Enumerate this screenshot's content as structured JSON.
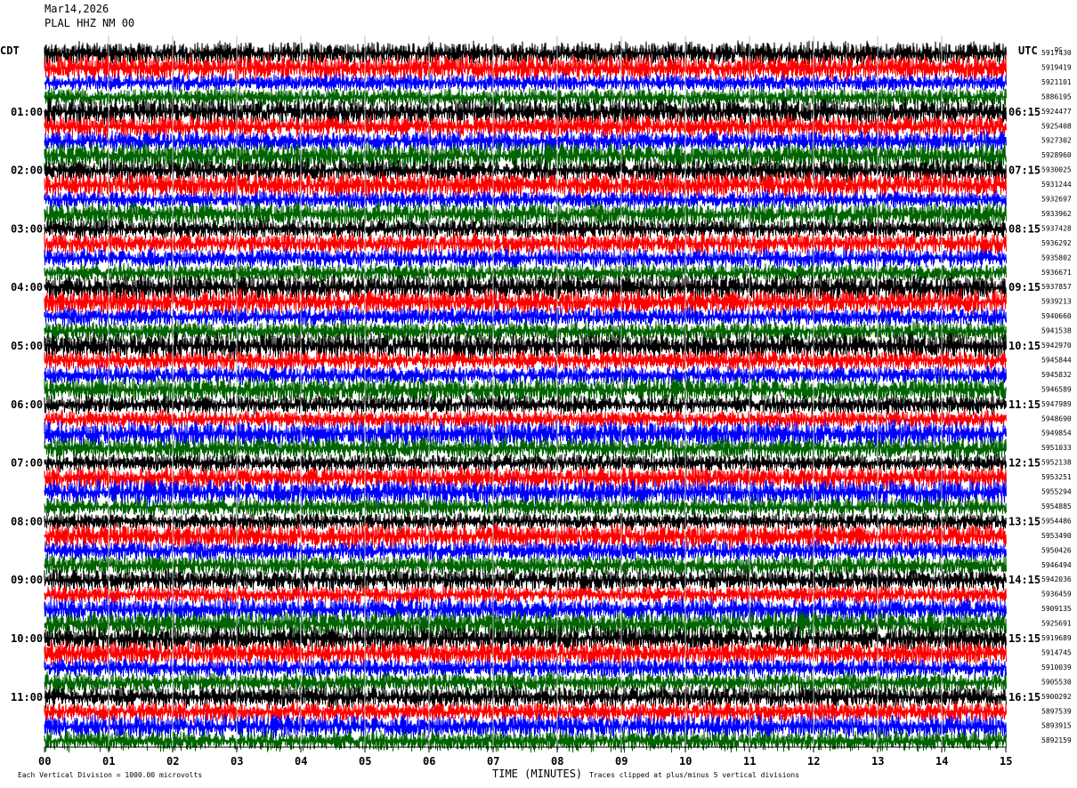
{
  "header": {
    "date": "Mar14,2026",
    "station": "PLAL HHZ NM 00"
  },
  "footer": {
    "scale_note": "Each Vertical Division = 1000.00 microvolts",
    "clip_note": "Traces clipped at plus/minus 5 vertical divisions"
  },
  "chart_data": {
    "type": "line",
    "title": "",
    "xlabel": "TIME (MINUTES)",
    "ylabel": "",
    "x_ticks": [
      "00",
      "01",
      "02",
      "03",
      "04",
      "05",
      "06",
      "07",
      "08",
      "09",
      "10",
      "11",
      "12",
      "13",
      "14",
      "15"
    ],
    "xlim": [
      0,
      15
    ],
    "left_axis_label": "CDT",
    "right_axis_label": "UTC",
    "dc_label": "DC",
    "hour_labels_local": [
      "01:00",
      "02:00",
      "03:00",
      "04:00",
      "05:00",
      "06:00",
      "07:00",
      "08:00",
      "09:00",
      "10:00",
      "11:00"
    ],
    "hour_labels_utc": [
      "06:15",
      "07:15",
      "08:15",
      "09:15",
      "10:15",
      "11:15",
      "12:15",
      "13:15",
      "14:15",
      "15:15",
      "16:15"
    ],
    "trace_colors": [
      "#000000",
      "#ff0000",
      "#0000ff",
      "#006400"
    ],
    "dc_offsets": [
      5917430,
      5919419,
      5921101,
      5886195,
      5924477,
      5925408,
      5927302,
      5928960,
      5930025,
      5931244,
      5932697,
      5933962,
      5937428,
      5936292,
      5935802,
      5936671,
      5937857,
      5939213,
      5940660,
      5941538,
      5942970,
      5945844,
      5945832,
      5946589,
      5947989,
      5948690,
      5949854,
      5951033,
      5952138,
      5953251,
      5955294,
      5954885,
      5954486,
      5953490,
      5950426,
      5946494,
      5942036,
      5936459,
      5909135,
      5925691,
      5919689,
      5914745,
      5910039,
      5905530,
      5900292,
      5897539,
      5893915,
      5892159
    ]
  }
}
